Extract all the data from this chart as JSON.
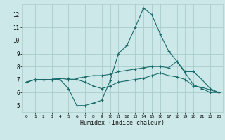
{
  "xlabel": "Humidex (Indice chaleur)",
  "xlim": [
    -0.5,
    23.5
  ],
  "ylim": [
    4.5,
    12.8
  ],
  "yticks": [
    5,
    6,
    7,
    8,
    9,
    10,
    11,
    12
  ],
  "xticks": [
    0,
    1,
    2,
    3,
    4,
    5,
    6,
    7,
    8,
    9,
    10,
    11,
    12,
    13,
    14,
    15,
    16,
    17,
    18,
    19,
    20,
    21,
    22,
    23
  ],
  "bg_color": "#cce8e8",
  "grid_color": "#aacccc",
  "line_color": "#1a6b6b",
  "lines": [
    {
      "x": [
        0,
        1,
        2,
        3,
        4,
        5,
        6,
        7,
        8,
        9,
        10,
        11,
        12,
        13,
        14,
        15,
        16,
        17,
        18,
        19,
        20,
        21,
        22,
        23
      ],
      "y": [
        6.8,
        7.0,
        7.0,
        7.0,
        7.0,
        6.3,
        5.0,
        5.0,
        5.2,
        5.4,
        6.9,
        9.0,
        9.6,
        11.0,
        12.5,
        12.0,
        10.5,
        9.2,
        8.4,
        7.5,
        6.6,
        6.3,
        6.0,
        6.0
      ]
    },
    {
      "x": [
        0,
        1,
        2,
        3,
        4,
        5,
        6,
        7,
        8,
        9,
        10,
        11,
        12,
        13,
        14,
        15,
        16,
        17,
        18,
        19,
        20,
        21,
        22,
        23
      ],
      "y": [
        6.8,
        7.0,
        7.0,
        7.0,
        7.1,
        7.1,
        7.1,
        7.2,
        7.3,
        7.3,
        7.4,
        7.6,
        7.7,
        7.8,
        7.9,
        8.0,
        8.0,
        7.9,
        8.4,
        7.6,
        7.6,
        7.0,
        6.3,
        6.0
      ]
    },
    {
      "x": [
        0,
        1,
        2,
        3,
        4,
        5,
        6,
        7,
        8,
        9,
        10,
        11,
        12,
        13,
        14,
        15,
        16,
        17,
        18,
        19,
        20,
        21,
        22,
        23
      ],
      "y": [
        6.8,
        7.0,
        7.0,
        7.0,
        7.1,
        7.0,
        7.0,
        6.8,
        6.5,
        6.3,
        6.5,
        6.8,
        6.9,
        7.0,
        7.1,
        7.3,
        7.5,
        7.3,
        7.2,
        7.0,
        6.5,
        6.4,
        6.2,
        6.0
      ]
    }
  ]
}
